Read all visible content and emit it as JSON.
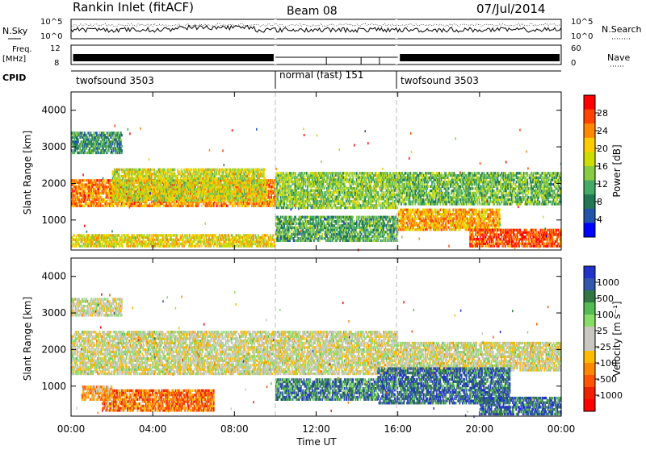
{
  "header": {
    "title": "Rankin Inlet (fitACF)",
    "beam": "Beam 08",
    "date": "07/Jul/2014"
  },
  "nsky_panel": {
    "left_label": "N.Sky",
    "right_label": "N.Search",
    "ticks_left": [
      "10^5",
      "10^0"
    ],
    "ticks_right": [
      "10^5",
      "10^0"
    ]
  },
  "freq_panel": {
    "left_label_line1": "Freq.",
    "left_label_line2": "[MHz]",
    "right_label": "Nave",
    "ticks_left": [
      "12",
      "8"
    ],
    "ticks_right": [
      "60",
      "0"
    ]
  },
  "cpid_panel": {
    "label": "CPID",
    "segments": [
      {
        "text": "twofsound 3503",
        "start_hour": 0,
        "end_hour": 10
      },
      {
        "text": "normal (fast) 151",
        "start_hour": 10,
        "end_hour": 16
      },
      {
        "text": "twofsound 3503",
        "start_hour": 16,
        "end_hour": 24
      }
    ]
  },
  "x_axis": {
    "label": "Time UT",
    "ticks": [
      "00:00",
      "04:00",
      "08:00",
      "12:00",
      "16:00",
      "20:00",
      "00:00"
    ]
  },
  "chart_data": [
    {
      "type": "heatmap",
      "name": "power",
      "ylabel": "Slant Range [km]",
      "yticks": [
        1000,
        2000,
        3000,
        4000
      ],
      "ylim": [
        180,
        4500
      ],
      "xlim_hours": [
        0,
        24
      ],
      "colorbar_label": "Power [dB]",
      "colorbar_ticks": [
        "28",
        "24",
        "20",
        "16",
        "12",
        "8",
        "4"
      ],
      "colorbar_colors": [
        "#ff0000",
        "#ff4400",
        "#ff8800",
        "#ffcc00",
        "#ccdd00",
        "#88cc44",
        "#44aa66",
        "#227755",
        "#2255aa",
        "#0000ff"
      ],
      "bands": [
        {
          "t0": 0,
          "t1": 10,
          "r0": 1350,
          "r1": 2100,
          "level": 0.75
        },
        {
          "t0": 2,
          "t1": 9.5,
          "r0": 1500,
          "r1": 2400,
          "level": 0.55
        },
        {
          "t0": 10,
          "t1": 16,
          "r0": 1300,
          "r1": 2300,
          "level": 0.45
        },
        {
          "t0": 16,
          "t1": 24,
          "r0": 1400,
          "r1": 2300,
          "level": 0.4
        },
        {
          "t0": 16,
          "t1": 21,
          "r0": 700,
          "r1": 1300,
          "level": 0.7
        },
        {
          "t0": 19.5,
          "t1": 24,
          "r0": 250,
          "r1": 750,
          "level": 0.85
        },
        {
          "t0": 0,
          "t1": 10,
          "r0": 250,
          "r1": 600,
          "level": 0.6
        },
        {
          "t0": 0,
          "t1": 2.5,
          "r0": 2800,
          "r1": 3400,
          "level": 0.3
        },
        {
          "t0": 10,
          "t1": 16,
          "r0": 400,
          "r1": 1100,
          "level": 0.35
        }
      ]
    },
    {
      "type": "heatmap",
      "name": "velocity",
      "ylabel": "Slant Range [km]",
      "yticks": [
        1000,
        2000,
        3000,
        4000
      ],
      "ylim": [
        180,
        4500
      ],
      "xlim_hours": [
        0,
        24
      ],
      "colorbar_label": "Velocity [m s⁻¹]",
      "colorbar_ticks": [
        "1000",
        "500",
        "100",
        "25",
        "-25",
        "-100",
        "-500",
        "-1000"
      ],
      "colorbar_colors": [
        "#2233cc",
        "#3355aa",
        "#337744",
        "#55bb55",
        "#88dd66",
        "#c8c8c0",
        "#c8c8c0",
        "#ffbb00",
        "#ff8800",
        "#ff5500",
        "#ee2200",
        "#ff0000"
      ],
      "bands": [
        {
          "t0": 0,
          "t1": 16,
          "r0": 1300,
          "r1": 2500,
          "level": 0.5
        },
        {
          "t0": 16,
          "t1": 24,
          "r0": 1400,
          "r1": 2200,
          "level": 0.5
        },
        {
          "t0": 0,
          "t1": 2.5,
          "r0": 2900,
          "r1": 3400,
          "level": 0.5
        },
        {
          "t0": 10,
          "t1": 15,
          "r0": 600,
          "r1": 1200,
          "level": 0.8
        },
        {
          "t0": 15,
          "t1": 21.5,
          "r0": 500,
          "r1": 1500,
          "level": 0.85
        },
        {
          "t0": 20,
          "t1": 24,
          "r0": 200,
          "r1": 700,
          "level": 0.85
        },
        {
          "t0": 1.5,
          "t1": 7,
          "r0": 300,
          "r1": 900,
          "level": 0.25
        },
        {
          "t0": 0.5,
          "t1": 2,
          "r0": 600,
          "r1": 1000,
          "level": 0.35
        }
      ]
    }
  ]
}
